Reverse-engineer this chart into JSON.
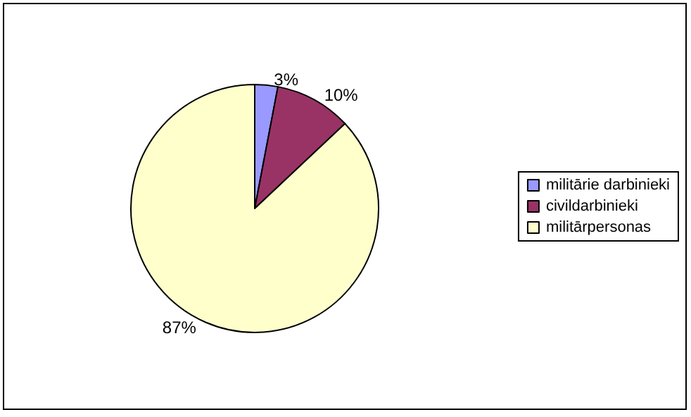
{
  "chart_data": {
    "type": "pie",
    "categories": [
      "militārie darbinieki",
      "civildarbinieki",
      "militārpersonas"
    ],
    "values": [
      3,
      10,
      87
    ],
    "colors": [
      "#9999ff",
      "#993366",
      "#ffffcc"
    ],
    "value_labels": [
      "3%",
      "10%",
      "87%"
    ],
    "legend": "right"
  }
}
